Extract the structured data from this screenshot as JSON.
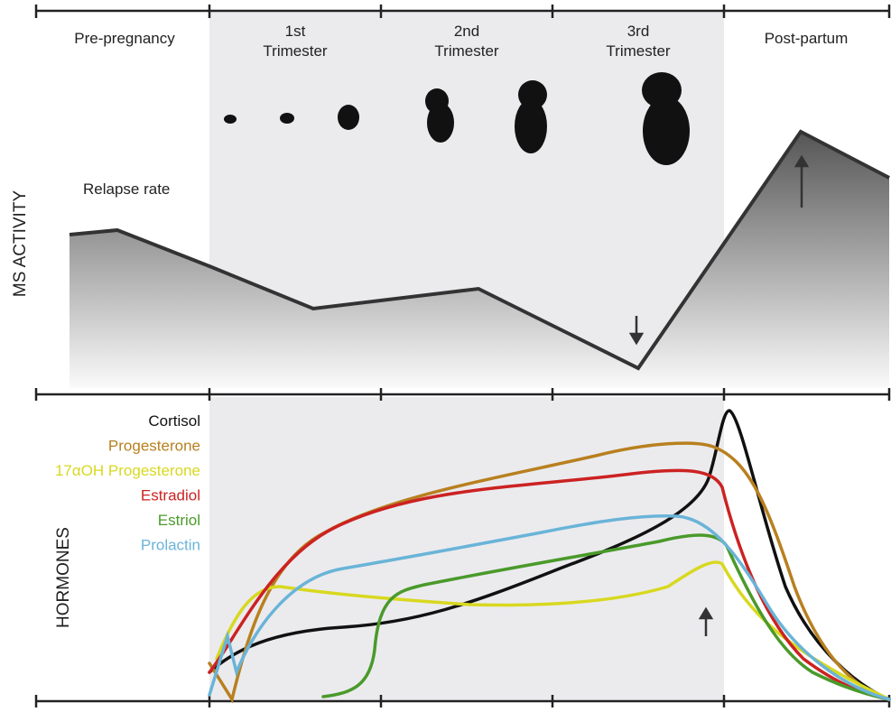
{
  "phases": [
    [
      "Pre-pregnancy"
    ],
    [
      "1st",
      "Trimester"
    ],
    [
      "2nd",
      "Trimester"
    ],
    [
      "3rd",
      "Trimester"
    ],
    [
      "Post-partum"
    ]
  ],
  "top_panel": {
    "axis_label": "MS ACTIVITY",
    "curve_label": "Relapse rate"
  },
  "bottom_panel": {
    "axis_label": "HORMONES",
    "legend": [
      {
        "name": "Cortisol",
        "color": "#111111"
      },
      {
        "name": "Progesterone",
        "color": "#b8801f"
      },
      {
        "name": "17αOH Progesterone",
        "color": "#d8d820"
      },
      {
        "name": "Estradiol",
        "color": "#cc2222"
      },
      {
        "name": "Estriol",
        "color": "#4a9a2a"
      },
      {
        "name": "Prolactin",
        "color": "#6ab4d8"
      }
    ]
  }
}
